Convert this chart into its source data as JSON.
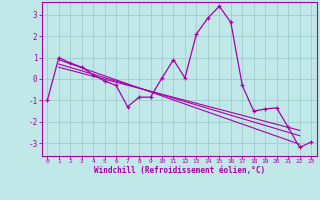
{
  "xlabel": "Windchill (Refroidissement éolien,°C)",
  "bg_color": "#c0e8e8",
  "grid_color": "#a0cccc",
  "line_color": "#aa00aa",
  "spine_color": "#aa00aa",
  "xlim": [
    -0.5,
    23.5
  ],
  "ylim": [
    -3.6,
    3.6
  ],
  "yticks": [
    -3,
    -2,
    -1,
    0,
    1,
    2,
    3
  ],
  "xticks": [
    0,
    1,
    2,
    3,
    4,
    5,
    6,
    7,
    8,
    9,
    10,
    11,
    12,
    13,
    14,
    15,
    16,
    17,
    18,
    19,
    20,
    21,
    22,
    23
  ],
  "main_x": [
    0,
    1,
    2,
    3,
    4,
    5,
    6,
    7,
    8,
    9,
    10,
    11,
    12,
    13,
    14,
    15,
    16,
    17,
    18,
    19,
    20,
    21,
    22,
    23
  ],
  "main_y": [
    -1.0,
    1.0,
    0.75,
    0.55,
    0.2,
    -0.1,
    -0.3,
    -1.3,
    -0.85,
    -0.85,
    0.05,
    0.9,
    0.05,
    2.1,
    2.85,
    3.4,
    2.65,
    -0.3,
    -1.5,
    -1.4,
    -1.35,
    -2.25,
    -3.2,
    -2.95
  ],
  "trend1_x": [
    1,
    22
  ],
  "trend1_y": [
    0.9,
    -3.05
  ],
  "trend2_x": [
    1,
    22
  ],
  "trend2_y": [
    0.7,
    -2.65
  ],
  "trend3_x": [
    1,
    22
  ],
  "trend3_y": [
    0.55,
    -2.4
  ]
}
